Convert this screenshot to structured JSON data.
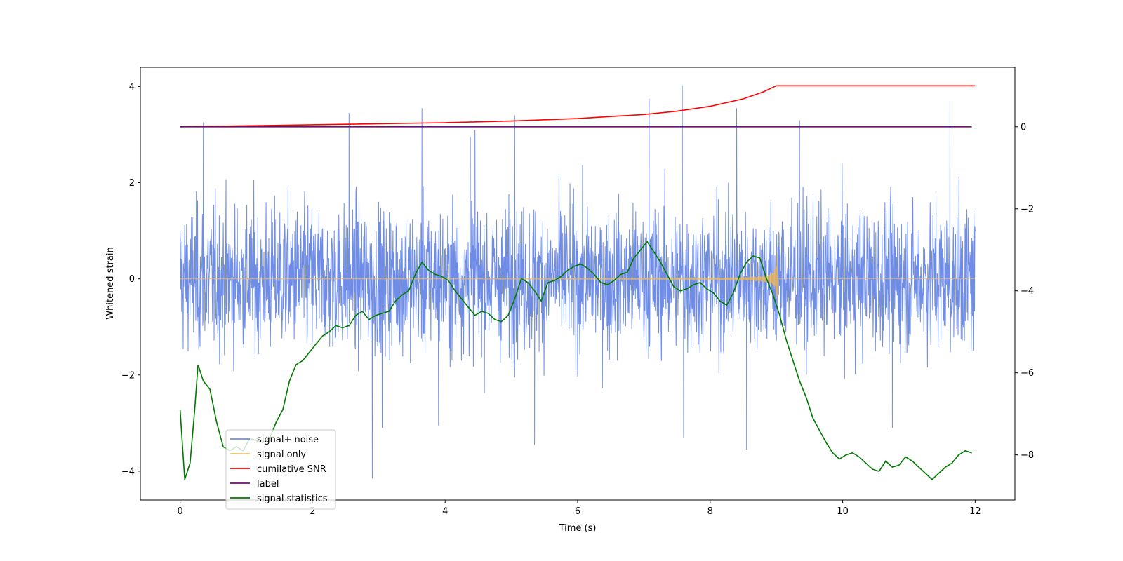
{
  "chart_data": {
    "type": "line",
    "title": "",
    "xlabel": "Time (s)",
    "ylabel": "Whitened strain",
    "ylabel_right": "",
    "xlim": [
      -0.6,
      12.6
    ],
    "ylim": [
      -4.6,
      4.4
    ],
    "ylim_right": [
      -9.1,
      1.45
    ],
    "x_ticks": [
      0,
      2,
      4,
      6,
      8,
      10,
      12
    ],
    "y_ticks": [
      -4,
      -2,
      0,
      2,
      4
    ],
    "y_right_ticks": [
      -8,
      -6,
      -4,
      -2,
      0
    ],
    "legend_position": "lower-left",
    "colors": {
      "noise": "#6f8de6",
      "signal": "#f5b84a",
      "snr": "#ff0000",
      "label": "#6a0f6a",
      "stats": "#007a00"
    },
    "series": [
      {
        "name": "signal+ noise",
        "axis": "left",
        "description_values": "noise band between about -2 and 2, spikes up to 4.02 and down to -4.15",
        "spikes": [
          [
            0.35,
            3.25
          ],
          [
            2.55,
            3.45
          ],
          [
            3.65,
            3.55
          ],
          [
            4.38,
            2.95
          ],
          [
            4.45,
            3.1
          ],
          [
            5.05,
            3.4
          ],
          [
            7.08,
            3.75
          ],
          [
            7.58,
            4.02
          ],
          [
            8.4,
            3.55
          ],
          [
            9.35,
            3.3
          ],
          [
            11.62,
            3.7
          ],
          [
            2.9,
            -4.15
          ],
          [
            3.05,
            -3.1
          ],
          [
            3.9,
            -3.05
          ],
          [
            5.35,
            -3.45
          ],
          [
            7.6,
            -3.3
          ],
          [
            8.55,
            -3.55
          ],
          [
            10.75,
            -3.1
          ]
        ]
      },
      {
        "name": "signal only",
        "axis": "left",
        "chirp_end": 9.02,
        "peak_amplitude": 0.6
      },
      {
        "name": "cumilative SNR",
        "axis": "right",
        "x": [
          0,
          2,
          4,
          5,
          6,
          7,
          7.5,
          8,
          8.5,
          8.8,
          9.0,
          9.02,
          12
        ],
        "y": [
          0.0,
          0.05,
          0.1,
          0.14,
          0.2,
          0.3,
          0.38,
          0.5,
          0.68,
          0.85,
          1.0,
          1.0,
          1.0
        ]
      },
      {
        "name": "label",
        "axis": "right",
        "x": [
          0,
          11.95
        ],
        "y": [
          0,
          0
        ]
      },
      {
        "name": "signal statistics",
        "axis": "right",
        "x": [
          0,
          0.07,
          0.15,
          0.22,
          0.27,
          0.35,
          0.45,
          0.55,
          0.65,
          0.75,
          0.85,
          0.95,
          1.05,
          1.15,
          1.25,
          1.35,
          1.45,
          1.55,
          1.65,
          1.75,
          1.85,
          1.95,
          2.05,
          2.15,
          2.25,
          2.35,
          2.45,
          2.55,
          2.65,
          2.75,
          2.85,
          2.95,
          3.05,
          3.15,
          3.25,
          3.35,
          3.45,
          3.55,
          3.65,
          3.75,
          3.85,
          3.95,
          4.05,
          4.15,
          4.25,
          4.35,
          4.45,
          4.55,
          4.65,
          4.75,
          4.85,
          4.95,
          5.05,
          5.15,
          5.25,
          5.35,
          5.45,
          5.55,
          5.65,
          5.75,
          5.85,
          5.95,
          6.05,
          6.15,
          6.25,
          6.35,
          6.45,
          6.55,
          6.65,
          6.75,
          6.85,
          6.95,
          7.05,
          7.15,
          7.25,
          7.35,
          7.45,
          7.55,
          7.65,
          7.75,
          7.85,
          7.95,
          8.05,
          8.15,
          8.25,
          8.35,
          8.45,
          8.55,
          8.65,
          8.75,
          8.85,
          8.95,
          9.05,
          9.15,
          9.25,
          9.35,
          9.45,
          9.55,
          9.65,
          9.75,
          9.85,
          9.95,
          10.05,
          10.15,
          10.25,
          10.35,
          10.45,
          10.55,
          10.65,
          10.75,
          10.85,
          10.95,
          11.05,
          11.15,
          11.25,
          11.35,
          11.45,
          11.55,
          11.65,
          11.75,
          11.85,
          11.95
        ],
        "y": [
          -6.9,
          -8.6,
          -8.2,
          -6.9,
          -5.8,
          -6.2,
          -6.4,
          -7.2,
          -7.8,
          -7.9,
          -7.8,
          -7.9,
          -7.6,
          -7.65,
          -7.7,
          -7.6,
          -7.2,
          -6.9,
          -6.2,
          -5.8,
          -5.7,
          -5.5,
          -5.3,
          -5.1,
          -5.0,
          -4.85,
          -4.9,
          -4.85,
          -4.6,
          -4.5,
          -4.7,
          -4.6,
          -4.55,
          -4.5,
          -4.25,
          -4.1,
          -4.0,
          -3.6,
          -3.3,
          -3.5,
          -3.6,
          -3.65,
          -3.75,
          -4.0,
          -4.2,
          -4.4,
          -4.6,
          -4.5,
          -4.55,
          -4.7,
          -4.75,
          -4.6,
          -4.2,
          -3.7,
          -3.8,
          -4.0,
          -4.25,
          -3.8,
          -3.75,
          -3.65,
          -3.5,
          -3.4,
          -3.35,
          -3.45,
          -3.6,
          -3.8,
          -3.85,
          -3.75,
          -3.6,
          -3.55,
          -3.2,
          -3.0,
          -2.8,
          -3.05,
          -3.3,
          -3.6,
          -3.9,
          -4.0,
          -3.95,
          -3.85,
          -3.8,
          -3.95,
          -4.05,
          -4.25,
          -4.35,
          -4.05,
          -3.6,
          -3.3,
          -3.15,
          -3.2,
          -3.7,
          -4.1,
          -4.6,
          -5.2,
          -5.7,
          -6.2,
          -6.6,
          -7.1,
          -7.4,
          -7.7,
          -7.95,
          -8.1,
          -8.0,
          -7.95,
          -8.05,
          -8.2,
          -8.35,
          -8.4,
          -8.15,
          -8.3,
          -8.25,
          -8.05,
          -8.15,
          -8.3,
          -8.45,
          -8.6,
          -8.45,
          -8.3,
          -8.2,
          -8.0,
          -7.9,
          -7.95
        ]
      }
    ],
    "legend": [
      "signal+ noise",
      "signal only",
      "cumilative SNR",
      "label",
      "signal statistics"
    ]
  }
}
